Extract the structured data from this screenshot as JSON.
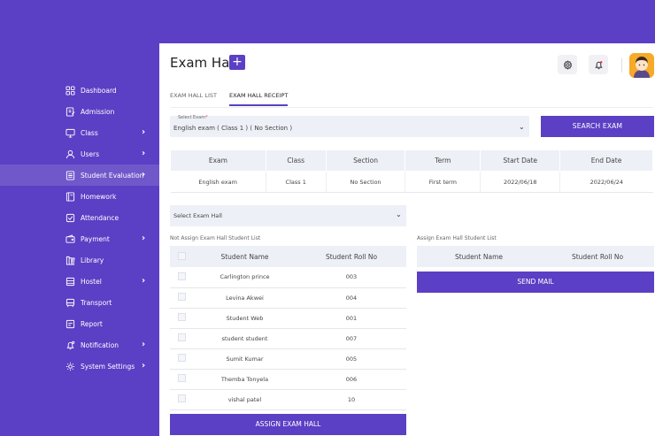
{
  "sidebar": {
    "items": [
      {
        "label": "Dashboard",
        "icon": "dashboard-icon",
        "chevron": ""
      },
      {
        "label": "Admission",
        "icon": "admission-icon",
        "chevron": ""
      },
      {
        "label": "Class",
        "icon": "class-icon",
        "chevron": "›"
      },
      {
        "label": "Users",
        "icon": "users-icon",
        "chevron": "›"
      },
      {
        "label": "Student Evaluation",
        "icon": "evaluation-icon",
        "chevron": "›"
      },
      {
        "label": "Homework",
        "icon": "homework-icon",
        "chevron": ""
      },
      {
        "label": "Attendance",
        "icon": "attendance-icon",
        "chevron": ""
      },
      {
        "label": "Payment",
        "icon": "payment-icon",
        "chevron": "›"
      },
      {
        "label": "Library",
        "icon": "library-icon",
        "chevron": ""
      },
      {
        "label": "Hostel",
        "icon": "hostel-icon",
        "chevron": "›"
      },
      {
        "label": "Transport",
        "icon": "transport-icon",
        "chevron": ""
      },
      {
        "label": "Report",
        "icon": "report-icon",
        "chevron": ""
      },
      {
        "label": "Notification",
        "icon": "notification-icon",
        "chevron": "›"
      },
      {
        "label": "System Settings",
        "icon": "settings-icon",
        "chevron": "›"
      }
    ]
  },
  "header": {
    "title": "Exam Hall",
    "add_label": "+"
  },
  "tabs": [
    {
      "label": "EXAM HALL LIST"
    },
    {
      "label": "EXAM HALL RECEIPT"
    }
  ],
  "exam_select": {
    "label": "Select Exam",
    "required": "*",
    "value": "English exam ( Class 1 ) ( No Section )"
  },
  "search_button": "SEARCH EXAM",
  "exam_table": {
    "headers": [
      "Exam",
      "Class",
      "Section",
      "Term",
      "Start Date",
      "End Date"
    ],
    "row": [
      "English exam",
      "Class 1",
      "No Section",
      "First term",
      "2022/06/18",
      "2022/06/24"
    ]
  },
  "hall_select": {
    "placeholder": "Select Exam Hall"
  },
  "not_assigned": {
    "label": "Not Assign Exam Hall Student List",
    "headers": [
      "Student Name",
      "Student Roll No"
    ],
    "rows": [
      {
        "name": "Carlington prince",
        "roll": "003"
      },
      {
        "name": "Levina Akwei",
        "roll": "004"
      },
      {
        "name": "Student Web",
        "roll": "001"
      },
      {
        "name": "student student",
        "roll": "007"
      },
      {
        "name": "Sumit Kumar",
        "roll": "005"
      },
      {
        "name": "Themba Tonyela",
        "roll": "006"
      },
      {
        "name": "vishal patel",
        "roll": "10"
      }
    ],
    "button": "ASSIGN EXAM HALL"
  },
  "assigned": {
    "label": "Assign Exam Hall Student List",
    "headers": [
      "Student Name",
      "Student Roll No"
    ],
    "button": "SEND MAIL"
  },
  "colors": {
    "accent": "#5b3fc4",
    "panel": "#edf0f6"
  }
}
